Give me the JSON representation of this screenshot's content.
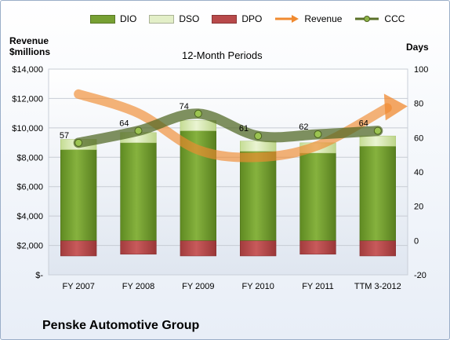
{
  "chart_data": {
    "type": "bar",
    "title": "12-Month Periods",
    "y_left_label_line1": "Revenue",
    "y_left_label_line2": "$millions",
    "y_right_label": "Days",
    "company": "Penske Automotive Group",
    "categories": [
      "FY 2007",
      "FY 2008",
      "FY 2009",
      "FY 2010",
      "FY 2011",
      "TTM 3-2012"
    ],
    "left_axis": {
      "min": 0,
      "max": 14000,
      "step": 2000,
      "tick_labels": [
        "$-",
        "$2,000",
        "$4,000",
        "$6,000",
        "$8,000",
        "$10,000",
        "$12,000",
        "$14,000"
      ]
    },
    "right_axis": {
      "min": -20,
      "max": 100,
      "step": 20,
      "tick_labels": [
        "-20",
        "0",
        "20",
        "40",
        "60",
        "80",
        "100"
      ]
    },
    "grid": true,
    "legend_position": "top",
    "series": [
      {
        "name": "DIO",
        "kind": "bar",
        "axis": "right",
        "values": [
          53,
          57,
          64,
          52,
          51,
          55
        ],
        "color": "#77a033"
      },
      {
        "name": "DSO",
        "kind": "bar",
        "axis": "right",
        "values": [
          6,
          6,
          6,
          6,
          6,
          6
        ],
        "color": "#d5e8ad"
      },
      {
        "name": "DPO",
        "kind": "bar",
        "axis": "right",
        "values": [
          -9,
          -8,
          -9,
          -9,
          -8,
          -9
        ],
        "color": "#b8494a"
      },
      {
        "name": "Revenue",
        "kind": "trend-arrow",
        "axis": "left",
        "values": [
          12300,
          11000,
          8500,
          8000,
          8800,
          11200
        ],
        "color": "#f08a30"
      },
      {
        "name": "CCC",
        "kind": "line",
        "axis": "right",
        "values": [
          57,
          64,
          74,
          61,
          62,
          64
        ],
        "data_labels": [
          "57",
          "64",
          "74",
          "61",
          "62",
          "64"
        ],
        "color": "#5a7028"
      }
    ]
  }
}
